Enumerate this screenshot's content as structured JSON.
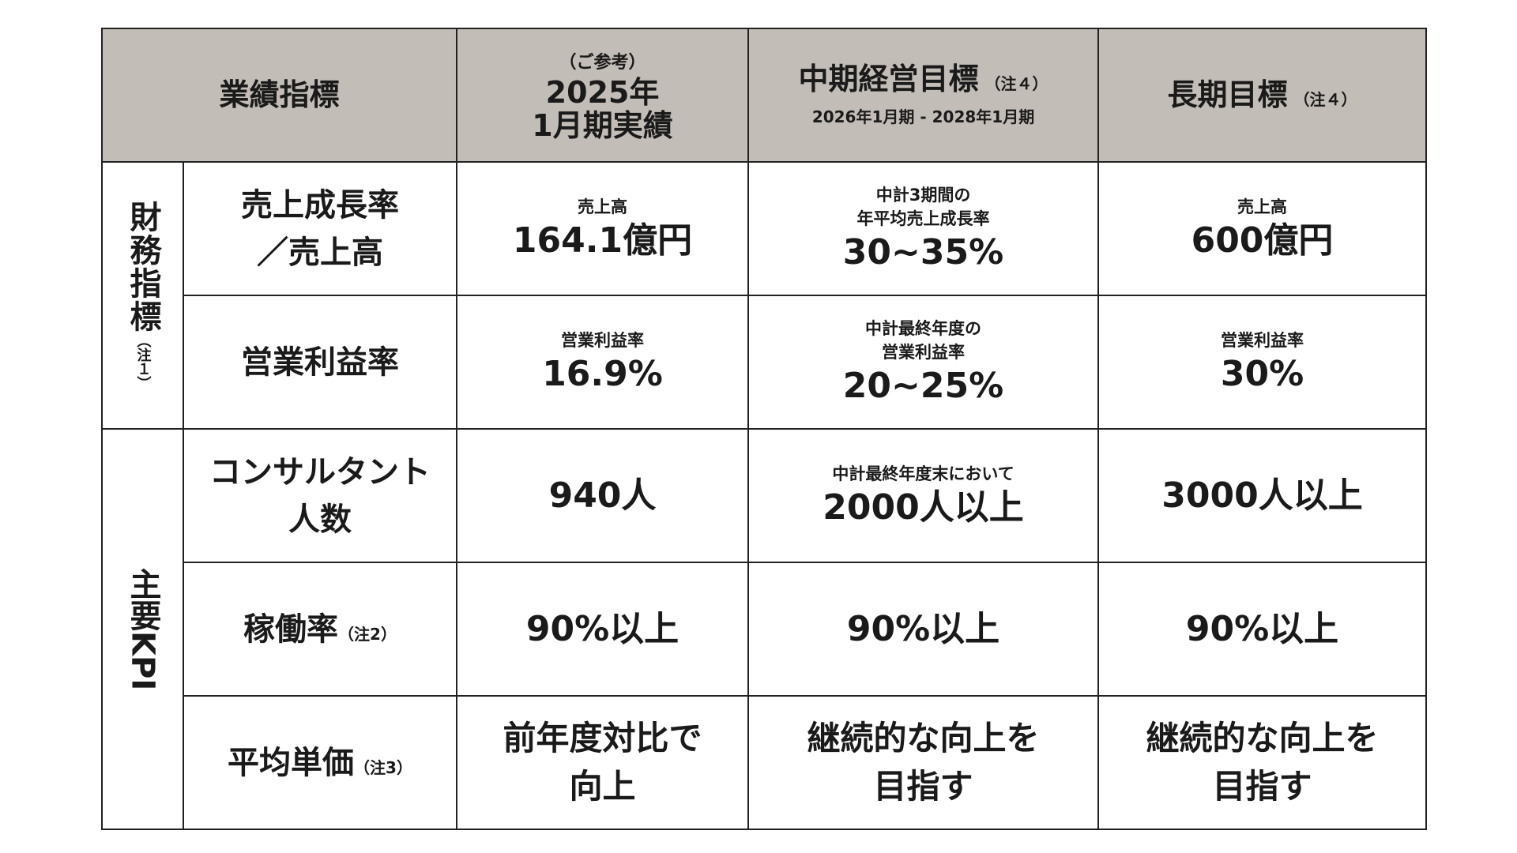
{
  "header": {
    "metric_label": "業績指標",
    "col_actual_pre": "（ご参考）",
    "col_actual_line1": "2025年",
    "col_actual_line2": "1月期実績",
    "col_mid_title": "中期経営目標",
    "col_mid_note": "（注４）",
    "col_mid_period": "2026年1月期 - 2028年1月期",
    "col_long_title": "長期目標",
    "col_long_note": "（注４）"
  },
  "groups": {
    "financial_label": "財務指標",
    "financial_note": "（注１）",
    "kpi_label": "主要KPI"
  },
  "rows": {
    "sales": {
      "metric_line1": "売上成長率",
      "metric_line2": "／売上高",
      "actual_label": "売上高",
      "actual_value": "164.1億円",
      "mid_label_line1": "中計3期間の",
      "mid_label_line2": "年平均売上成長率",
      "mid_value": "30~35%",
      "long_label": "売上高",
      "long_value": "600億円"
    },
    "margin": {
      "metric": "営業利益率",
      "actual_label": "営業利益率",
      "actual_value": "16.9%",
      "mid_label_line1": "中計最終年度の",
      "mid_label_line2": "営業利益率",
      "mid_value": "20~25%",
      "long_label": "営業利益率",
      "long_value": "30%"
    },
    "consultants": {
      "metric_line1": "コンサルタント",
      "metric_line2": "人数",
      "actual_value": "940人",
      "mid_label": "中計最終年度末において",
      "mid_value": "2000人以上",
      "long_value": "3000人以上"
    },
    "utilization": {
      "metric": "稼働率",
      "metric_note": "（注2）",
      "actual_value": "90%以上",
      "mid_value": "90%以上",
      "long_value": "90%以上"
    },
    "unit_price": {
      "metric": "平均単価",
      "metric_note": "（注3）",
      "actual_line1": "前年度対比で",
      "actual_line2": "向上",
      "mid_line1": "継続的な向上を",
      "mid_line2": "目指す",
      "long_line1": "継続的な向上を",
      "long_line2": "目指す"
    }
  },
  "colors": {
    "header_bg": "#c3bdb7",
    "border": "#222222",
    "text": "#1a1a1a"
  }
}
